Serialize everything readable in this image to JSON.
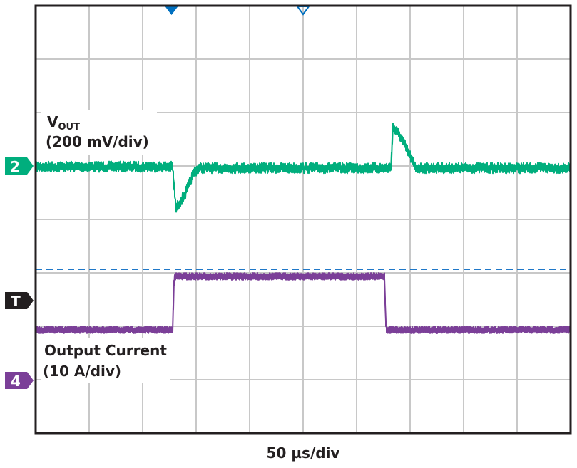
{
  "chart_data": {
    "type": "line",
    "title": "",
    "xlabel": "50 µs/div",
    "x_unit": "µs",
    "xlim": [
      0,
      500
    ],
    "grid": true,
    "divisions": {
      "horizontal": 10,
      "vertical": 8
    },
    "trigger_time": 127,
    "trigger_level_div": 2.4,
    "series": [
      {
        "name": "VOUT",
        "label_main": "V",
        "label_sub": "OUT",
        "scale": "(200 mV/div)",
        "channel": "2",
        "color": "#00ae7d",
        "unit": "mV (deviation from nominal)",
        "points": [
          [
            0,
            0
          ],
          [
            128,
            0
          ],
          [
            131,
            -157
          ],
          [
            140,
            -100
          ],
          [
            148,
            -20
          ],
          [
            153,
            -5
          ],
          [
            330,
            -5
          ],
          [
            332,
            0
          ],
          [
            334,
            147
          ],
          [
            340,
            120
          ],
          [
            350,
            40
          ],
          [
            355,
            -5
          ],
          [
            500,
            -5
          ]
        ]
      },
      {
        "name": "Output Current",
        "scale": "(10 A/div)",
        "channel": "4",
        "color": "#7b3f98",
        "unit": "A (relative to low level)",
        "points": [
          [
            0,
            0
          ],
          [
            128,
            0
          ],
          [
            129.5,
            10
          ],
          [
            326,
            10
          ],
          [
            327.5,
            0
          ],
          [
            500,
            0
          ]
        ]
      }
    ],
    "markers": {
      "trigger_label": "T",
      "trigger_color": "#231f20",
      "trigger_line_color": "#1f78c8",
      "top_marker_color": "#0070c0"
    }
  }
}
